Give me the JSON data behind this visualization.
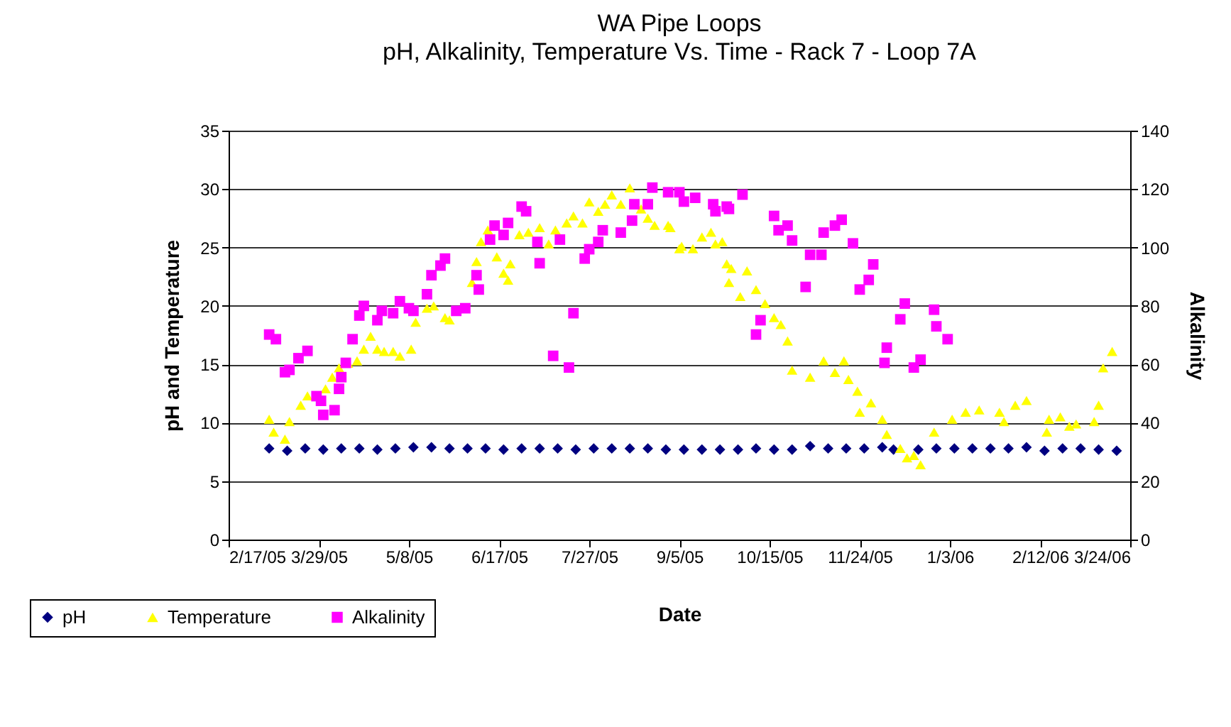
{
  "chart_data": {
    "type": "scatter",
    "title": "WA Pipe Loops",
    "subtitle": "pH, Alkalinity, Temperature Vs. Time - Rack 7 - Loop 7A",
    "xlabel": "Date",
    "ylabel": "pH and Temperature",
    "y2label": "Alkalinity",
    "xlim": [
      "2005-02-17",
      "2006-03-24"
    ],
    "xticks": [
      {
        "value": "2005-02-17",
        "label": "2/17/05"
      },
      {
        "value": "2005-03-29",
        "label": "3/29/05"
      },
      {
        "value": "2005-05-08",
        "label": "5/8/05"
      },
      {
        "value": "2005-06-17",
        "label": "6/17/05"
      },
      {
        "value": "2005-07-27",
        "label": "7/27/05"
      },
      {
        "value": "2005-09-05",
        "label": "9/5/05"
      },
      {
        "value": "2005-10-15",
        "label": "10/15/05"
      },
      {
        "value": "2005-11-24",
        "label": "11/24/05"
      },
      {
        "value": "2006-01-03",
        "label": "1/3/06"
      },
      {
        "value": "2006-02-12",
        "label": "2/12/06"
      },
      {
        "value": "2006-03-24",
        "label": "3/24/06"
      }
    ],
    "ylim": [
      0,
      35
    ],
    "yticks": [
      0,
      5,
      10,
      15,
      20,
      25,
      30,
      35
    ],
    "y2lim": [
      0,
      140
    ],
    "y2ticks": [
      0,
      20,
      40,
      60,
      80,
      100,
      120,
      140
    ],
    "grid": "y",
    "legend": "bottom left",
    "series": [
      {
        "name": "pH",
        "color": "#000080",
        "marker": "diamond",
        "x": [
          "2005-03-07",
          "2005-03-15",
          "2005-03-23",
          "2005-03-31",
          "2005-04-08",
          "2005-04-16",
          "2005-04-24",
          "2005-05-02",
          "2005-05-10",
          "2005-05-18",
          "2005-05-26",
          "2005-06-03",
          "2005-06-11",
          "2005-06-19",
          "2005-06-27",
          "2005-07-05",
          "2005-07-13",
          "2005-07-21",
          "2005-07-29",
          "2005-08-06",
          "2005-08-14",
          "2005-08-22",
          "2005-08-30",
          "2005-09-07",
          "2005-09-15",
          "2005-09-23",
          "2005-10-01",
          "2005-10-09",
          "2005-10-17",
          "2005-10-25",
          "2005-11-02",
          "2005-11-10",
          "2005-11-18",
          "2005-11-26",
          "2005-12-04",
          "2005-12-09",
          "2005-12-20",
          "2005-12-28",
          "2006-01-05",
          "2006-01-13",
          "2006-01-21",
          "2006-01-29",
          "2006-02-06",
          "2006-02-14",
          "2006-02-22",
          "2006-03-02",
          "2006-03-10",
          "2006-03-18"
        ],
        "values": [
          7.8,
          7.6,
          7.8,
          7.7,
          7.8,
          7.8,
          7.7,
          7.8,
          7.9,
          7.9,
          7.8,
          7.8,
          7.8,
          7.7,
          7.8,
          7.8,
          7.8,
          7.7,
          7.8,
          7.8,
          7.8,
          7.8,
          7.7,
          7.7,
          7.7,
          7.7,
          7.7,
          7.8,
          7.7,
          7.7,
          8.0,
          7.8,
          7.8,
          7.8,
          7.9,
          7.7,
          7.7,
          7.8,
          7.8,
          7.8,
          7.8,
          7.8,
          7.9,
          7.6,
          7.8,
          7.8,
          7.7,
          7.6
        ]
      },
      {
        "name": "Temperature",
        "color": "#ffff00",
        "marker": "triangle",
        "x": [
          "2005-03-07",
          "2005-03-09",
          "2005-03-14",
          "2005-03-16",
          "2005-03-21",
          "2005-03-24",
          "2005-03-28",
          "2005-04-01",
          "2005-04-04",
          "2005-04-07",
          "2005-04-11",
          "2005-04-15",
          "2005-04-18",
          "2005-04-21",
          "2005-04-24",
          "2005-04-27",
          "2005-05-01",
          "2005-05-04",
          "2005-05-09",
          "2005-05-11",
          "2005-05-16",
          "2005-05-19",
          "2005-05-24",
          "2005-05-26",
          "2005-05-31",
          "2005-06-05",
          "2005-06-07",
          "2005-06-09",
          "2005-06-12",
          "2005-06-16",
          "2005-06-19",
          "2005-06-22",
          "2005-06-21",
          "2005-06-26",
          "2005-06-30",
          "2005-07-05",
          "2005-07-09",
          "2005-07-12",
          "2005-07-17",
          "2005-07-20",
          "2005-07-24",
          "2005-07-27",
          "2005-07-31",
          "2005-08-03",
          "2005-08-06",
          "2005-08-10",
          "2005-08-14",
          "2005-08-19",
          "2005-08-22",
          "2005-08-25",
          "2005-08-31",
          "2005-09-05",
          "2005-09-01",
          "2005-09-06",
          "2005-09-11",
          "2005-09-15",
          "2005-09-19",
          "2005-09-21",
          "2005-09-24",
          "2005-09-26",
          "2005-09-28",
          "2005-09-27",
          "2005-10-02",
          "2005-10-05",
          "2005-10-09",
          "2005-10-13",
          "2005-10-17",
          "2005-10-20",
          "2005-10-23",
          "2005-10-25",
          "2005-11-02",
          "2005-11-08",
          "2005-11-13",
          "2005-11-17",
          "2005-11-19",
          "2005-11-23",
          "2005-11-24",
          "2005-11-29",
          "2005-12-04",
          "2005-12-06",
          "2005-12-12",
          "2005-12-15",
          "2005-12-18",
          "2005-12-21",
          "2005-12-27",
          "2006-01-04",
          "2006-01-10",
          "2006-01-16",
          "2006-01-25",
          "2006-01-27",
          "2006-02-01",
          "2006-02-06",
          "2006-02-15",
          "2006-02-16",
          "2006-02-21",
          "2006-02-25",
          "2006-02-28",
          "2006-03-08",
          "2006-03-10",
          "2006-03-12",
          "2006-03-16"
        ],
        "values": [
          10.3,
          9.2,
          8.6,
          10.1,
          11.5,
          12.3,
          null,
          12.9,
          13.9,
          14.7,
          15.1,
          15.3,
          16.3,
          17.4,
          16.3,
          16.1,
          16.1,
          15.7,
          16.3,
          18.6,
          19.8,
          20.0,
          19.0,
          18.8,
          null,
          22.0,
          23.8,
          25.5,
          26.5,
          24.2,
          22.8,
          23.6,
          22.2,
          26.1,
          26.3,
          26.7,
          25.3,
          26.5,
          27.1,
          27.7,
          27.1,
          28.9,
          28.1,
          28.7,
          29.5,
          28.7,
          30.1,
          28.3,
          27.5,
          26.9,
          26.9,
          24.9,
          26.7,
          25.1,
          24.9,
          25.9,
          26.3,
          25.3,
          25.5,
          23.6,
          23.2,
          22.0,
          20.8,
          23.0,
          21.4,
          20.2,
          19.0,
          18.4,
          17.0,
          14.5,
          13.9,
          15.3,
          14.3,
          15.3,
          13.7,
          12.7,
          10.9,
          11.7,
          10.3,
          9.0,
          7.8,
          7.0,
          7.2,
          6.4,
          9.2,
          10.3,
          10.9,
          11.1,
          10.9,
          10.1,
          11.5,
          11.9,
          9.2,
          10.3,
          10.5,
          9.7,
          9.9,
          10.1,
          11.5,
          14.7,
          16.1
        ]
      },
      {
        "name": "Alkalinity",
        "color": "#ff00ff",
        "marker": "square",
        "axis": "y2",
        "x": [
          "2005-03-07",
          "2005-03-10",
          "2005-03-14",
          "2005-03-16",
          "2005-03-20",
          "2005-03-24",
          "2005-03-28",
          "2005-03-30",
          "2005-03-31",
          "2005-04-05",
          "2005-04-07",
          "2005-04-08",
          "2005-04-10",
          "2005-04-13",
          "2005-04-16",
          "2005-04-18",
          "2005-04-24",
          "2005-04-26",
          "2005-05-01",
          "2005-05-04",
          "2005-05-08",
          "2005-05-10",
          "2005-05-16",
          "2005-05-18",
          "2005-05-22",
          "2005-05-24",
          "2005-05-29",
          "2005-06-02",
          "2005-06-07",
          "2005-06-08",
          "2005-06-13",
          "2005-06-15",
          "2005-06-19",
          "2005-06-21",
          "2005-06-27",
          "2005-06-29",
          "2005-07-05",
          "2005-07-04",
          "2005-07-11",
          "2005-07-14",
          "2005-07-18",
          "2005-07-20",
          "2005-07-25",
          "2005-07-27",
          "2005-07-31",
          "2005-08-02",
          "2005-08-10",
          "2005-08-15",
          "2005-08-16",
          "2005-08-22",
          "2005-08-24",
          "2005-08-31",
          "2005-09-05",
          "2005-09-07",
          "2005-09-12",
          "2005-09-20",
          "2005-09-21",
          "2005-09-26",
          "2005-09-27",
          "2005-10-03",
          "2005-10-09",
          "2005-10-11",
          "2005-10-17",
          "2005-10-19",
          "2005-10-23",
          "2005-10-25",
          "2005-10-31",
          "2005-11-02",
          "2005-11-07",
          "2005-11-08",
          "2005-11-13",
          "2005-11-16",
          "2005-11-21",
          "2005-11-24",
          "2005-11-28",
          "2005-11-30",
          "2005-12-05",
          "2005-12-06",
          "2005-12-12",
          "2005-12-14",
          "2005-12-18",
          "2005-12-21",
          "2005-12-27",
          "2005-12-28",
          "2006-01-02"
        ],
        "values": [
          70.2,
          68.6,
          57.3,
          58.1,
          62.1,
          64.6,
          49.1,
          47.5,
          42.7,
          44.3,
          51.6,
          55.6,
          60.5,
          68.6,
          76.7,
          80.0,
          75.1,
          78.3,
          77.5,
          81.6,
          79.2,
          78.3,
          84.0,
          90.5,
          93.8,
          96.2,
          78.3,
          79.2,
          90.5,
          85.6,
          102.7,
          107.5,
          104.3,
          108.4,
          114.0,
          112.4,
          94.6,
          101.9,
          62.9,
          102.7,
          58.9,
          77.5,
          96.2,
          99.4,
          101.9,
          105.9,
          105.1,
          109.2,
          114.8,
          114.8,
          120.5,
          118.9,
          118.9,
          115.7,
          117.0,
          114.8,
          112.4,
          114.0,
          113.2,
          118.1,
          70.2,
          75.1,
          110.8,
          105.9,
          107.5,
          102.4,
          86.5,
          97.5,
          97.5,
          105.1,
          107.5,
          109.5,
          101.4,
          85.6,
          88.9,
          94.2,
          60.5,
          65.7,
          75.4,
          80.8,
          58.9,
          61.6,
          78.7,
          73.0,
          68.6
        ]
      }
    ]
  }
}
